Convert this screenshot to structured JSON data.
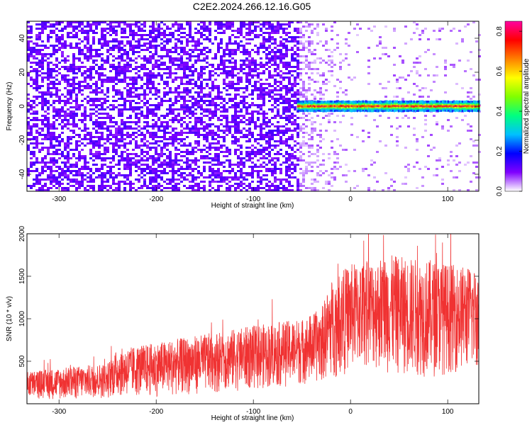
{
  "title": "C2E2.2024.266.12.16.G05",
  "chart_data": [
    {
      "type": "heatmap",
      "xlabel": "Height of straight line (km)",
      "ylabel": "Frequency (Hz)",
      "xlim": [
        -333,
        132
      ],
      "ylim": [
        -50,
        50
      ],
      "xticks": [
        -300,
        -200,
        -100,
        0,
        100
      ],
      "yticks": [
        -40,
        -20,
        0,
        20,
        40
      ],
      "colorbar": {
        "label": "Normalized spectral amplitude",
        "range": [
          0,
          0.85
        ],
        "ticks": [
          "0.0",
          "0.2",
          "0.4",
          "0.6",
          "0.8"
        ],
        "tick_values": [
          0,
          0.2,
          0.4,
          0.6,
          0.8
        ],
        "colors": [
          "#ffffff",
          "#8000ff",
          "#0000ff",
          "#00c0ff",
          "#00ff80",
          "#80ff00",
          "#ffff00",
          "#ff8000",
          "#ff0000",
          "#ff00a0"
        ]
      },
      "description_values": {
        "noise_region_x": [
          -333,
          -55
        ],
        "noise_level": 0.1,
        "faded_region_x": [
          -55,
          132
        ],
        "faded_noise_level": 0.03,
        "signal_band_x": [
          -55,
          132
        ],
        "signal_frequency_hz": 0,
        "signal_peak_amplitude": 0.8
      }
    },
    {
      "type": "line",
      "xlabel": "Height of straight line (km)",
      "ylabel": "SNR (10 * v/v)",
      "xlim": [
        -333,
        132
      ],
      "ylim": [
        0,
        2000
      ],
      "xticks": [
        -300,
        -200,
        -100,
        0,
        100
      ],
      "yticks": [
        500,
        1000,
        1500,
        2000
      ],
      "color": "#f03232",
      "series": [
        {
          "envelope_x": [
            -333,
            -300,
            -250,
            -240,
            -200,
            -150,
            -100,
            -50,
            -30,
            -20,
            -10,
            0,
            20,
            40,
            60,
            80,
            100,
            132
          ],
          "envelope_upper": [
            380,
            420,
            480,
            640,
            720,
            820,
            920,
            1000,
            1120,
            1450,
            1560,
            1650,
            1700,
            1750,
            1720,
            1700,
            1650,
            1600
          ],
          "envelope_lower": [
            60,
            40,
            60,
            80,
            80,
            120,
            160,
            220,
            250,
            300,
            320,
            380,
            400,
            350,
            320,
            300,
            350,
            400
          ]
        }
      ]
    }
  ]
}
